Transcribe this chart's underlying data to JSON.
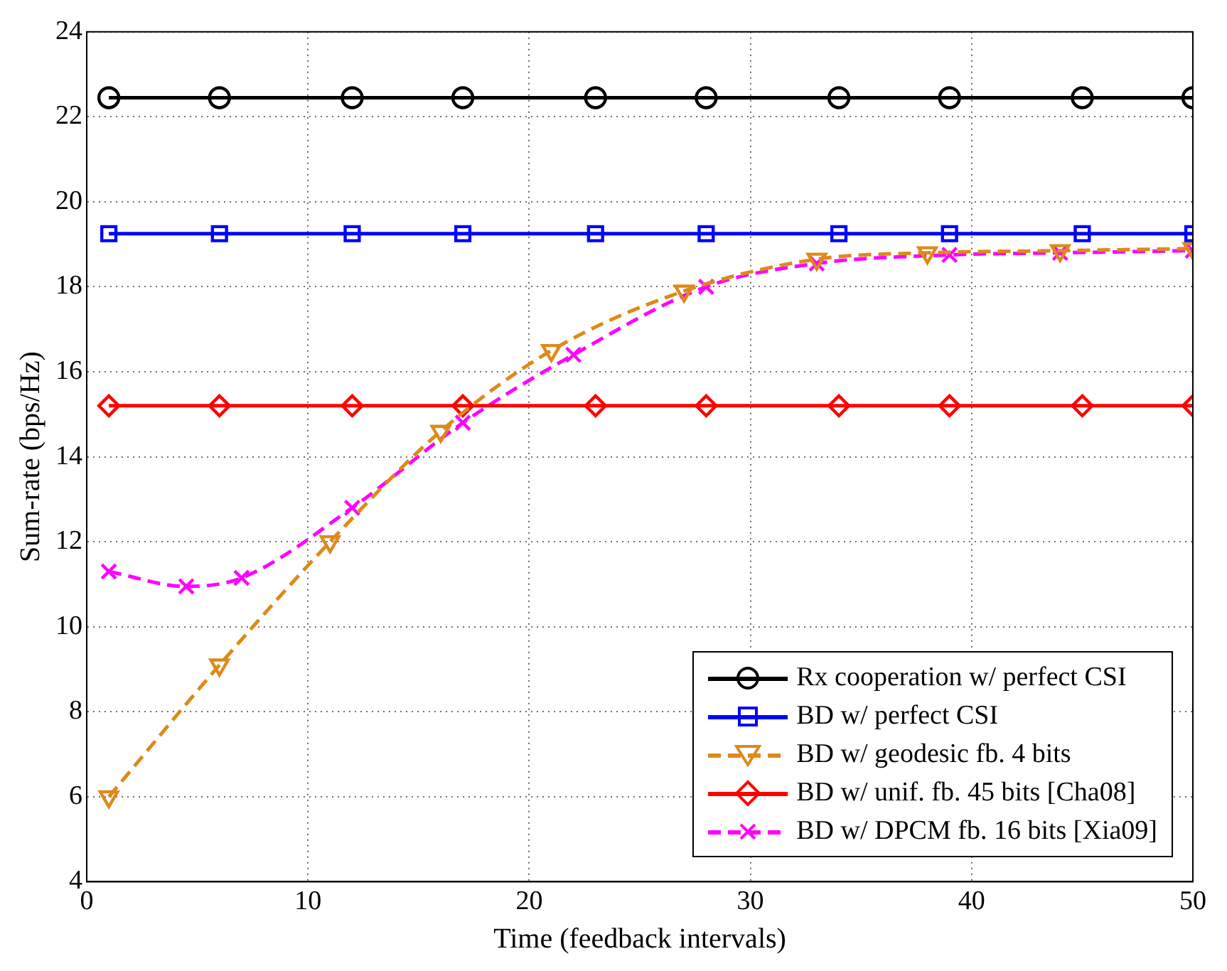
{
  "chart_data": {
    "type": "line",
    "xlabel": "Time (feedback intervals)",
    "ylabel": "Sum-rate (bps/Hz)",
    "xlim": [
      0,
      50
    ],
    "xticks": [
      0,
      10,
      20,
      30,
      40,
      50
    ],
    "ylim": [
      4,
      24
    ],
    "yticks": [
      4,
      6,
      8,
      10,
      12,
      14,
      16,
      18,
      20,
      22,
      24
    ],
    "grid": true,
    "legend": "bottom right",
    "series": [
      {
        "name": "Rx cooperation w/ perfect CSI",
        "color": "#000000",
        "marker": "circle",
        "line_style": "solid",
        "x": [
          1,
          6,
          12,
          17,
          23,
          28,
          34,
          39,
          45,
          50
        ],
        "values": [
          22.45,
          22.45,
          22.45,
          22.45,
          22.45,
          22.45,
          22.45,
          22.45,
          22.45,
          22.45
        ]
      },
      {
        "name": "BD w/ perfect CSI",
        "color": "#0000ff",
        "marker": "square",
        "line_style": "solid",
        "x": [
          1,
          6,
          12,
          17,
          23,
          28,
          34,
          39,
          45,
          50
        ],
        "values": [
          19.25,
          19.25,
          19.25,
          19.25,
          19.25,
          19.25,
          19.25,
          19.25,
          19.25,
          19.25
        ]
      },
      {
        "name": "BD w/ geodesic fb. 4 bits",
        "color": "#dd8a1a",
        "marker": "triangle",
        "line_style": "dashed",
        "x": [
          1,
          6,
          11,
          16,
          21,
          27,
          33,
          38,
          44,
          50
        ],
        "values": [
          6.0,
          9.1,
          12.0,
          14.6,
          16.5,
          17.9,
          18.65,
          18.8,
          18.85,
          18.9
        ]
      },
      {
        "name": "BD w/ unif. fb. 45 bits [Cha08]",
        "color": "#ff0000",
        "marker": "diamond",
        "line_style": "solid",
        "x": [
          1,
          6,
          12,
          17,
          23,
          28,
          34,
          39,
          45,
          50
        ],
        "values": [
          15.2,
          15.2,
          15.2,
          15.2,
          15.2,
          15.2,
          15.2,
          15.2,
          15.2,
          15.2
        ]
      },
      {
        "name": "BD w/ DPCM fb. 16 bits [Xia09]",
        "color": "#ff00ff",
        "marker": "cross",
        "line_style": "dashed",
        "x": [
          1,
          4.5,
          7,
          12,
          17,
          22,
          28,
          33,
          39,
          44,
          50
        ],
        "values": [
          11.3,
          10.95,
          11.15,
          12.8,
          14.8,
          16.4,
          18.0,
          18.55,
          18.75,
          18.8,
          18.85
        ]
      }
    ]
  }
}
